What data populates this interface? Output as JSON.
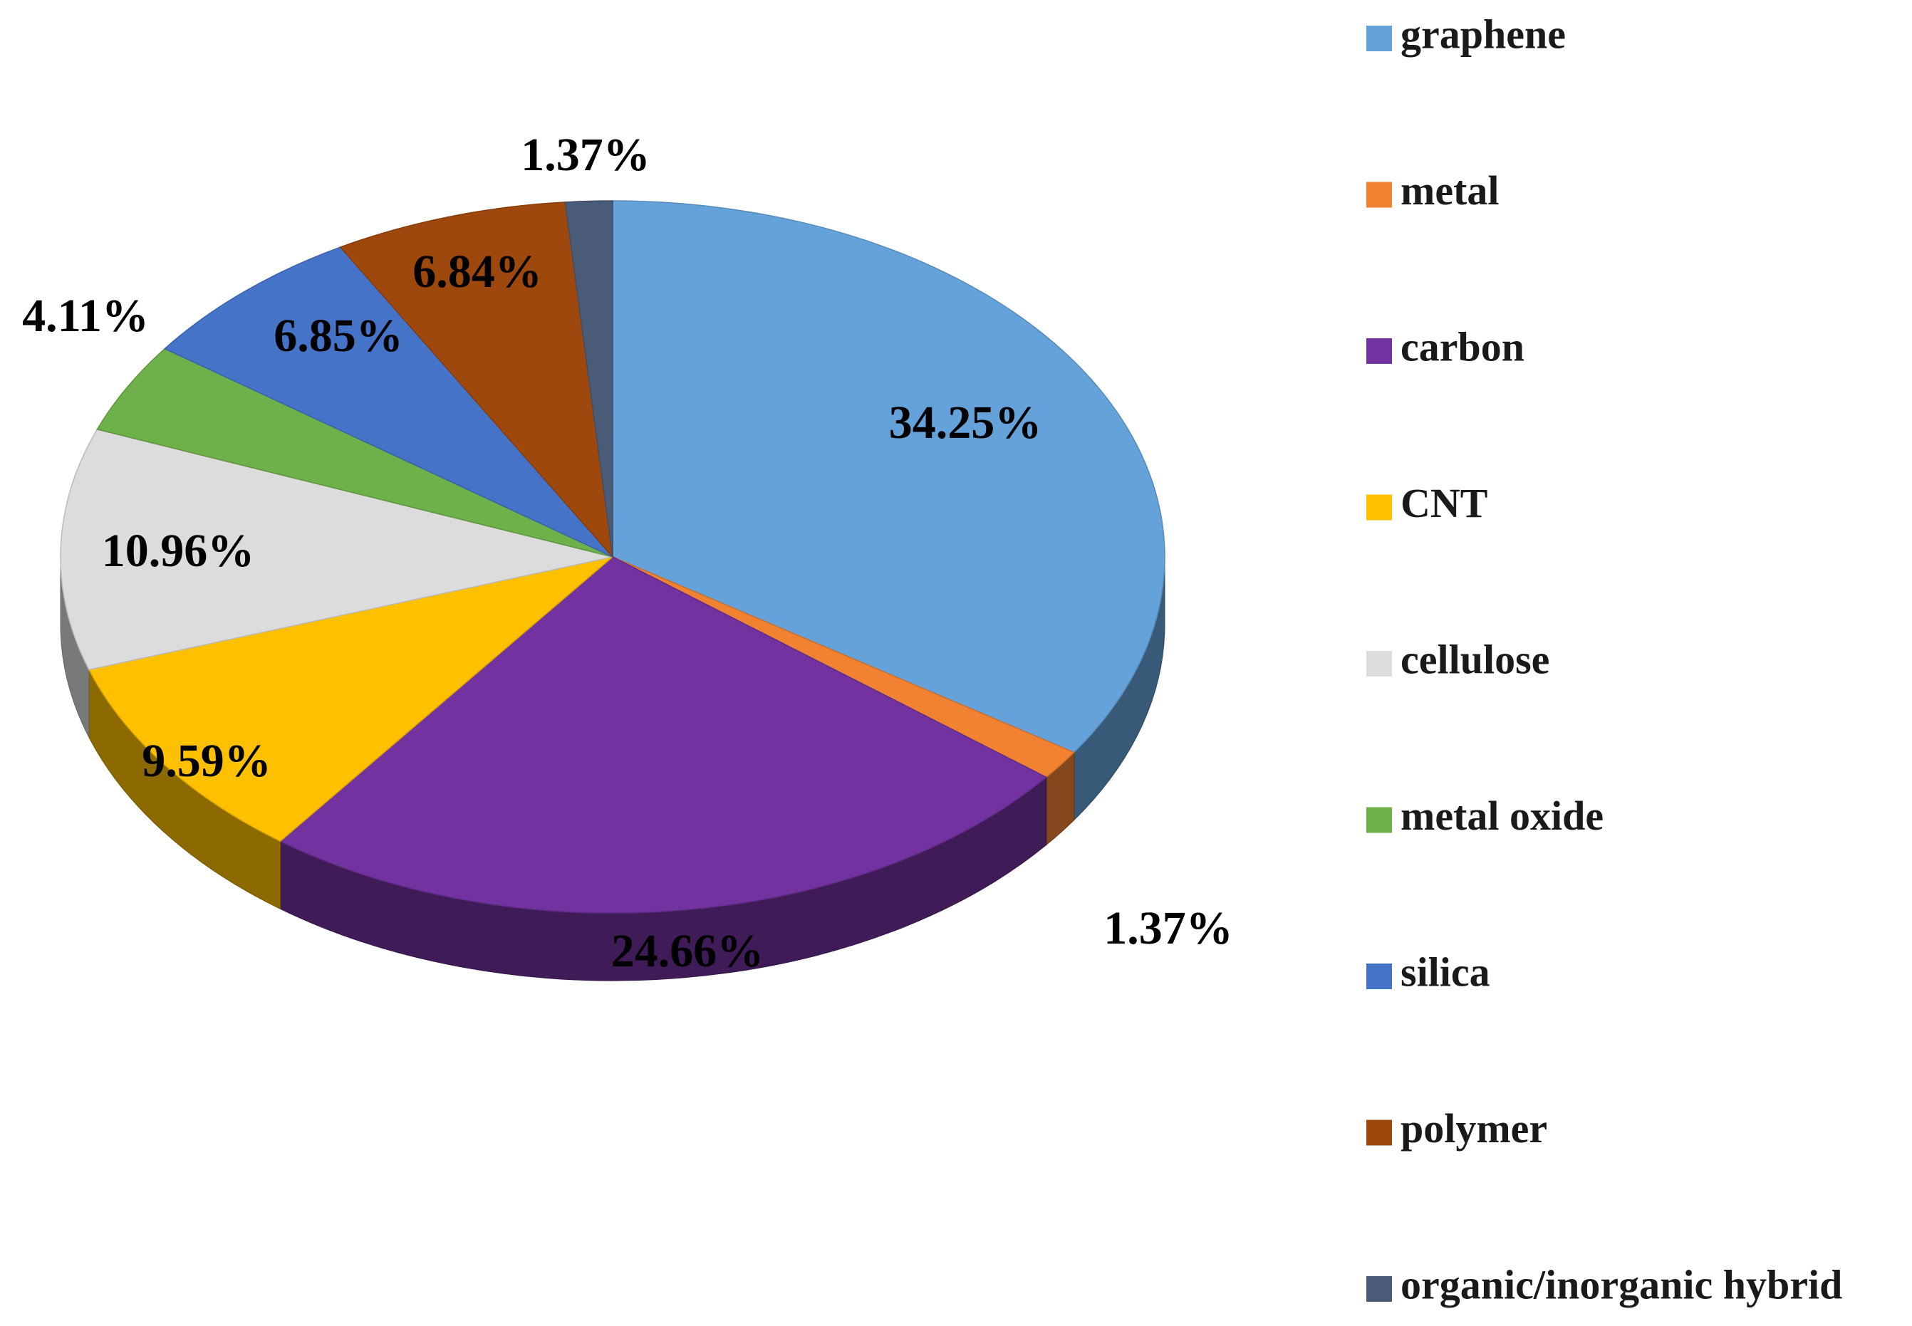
{
  "chart_data": {
    "type": "pie",
    "style": "3d",
    "legend_position": "right",
    "start_angle_deg": 0,
    "direction": "clockwise",
    "slices": [
      {
        "name": "graphene",
        "value": 34.25,
        "label": "34.25%",
        "color": "#65A2DA"
      },
      {
        "name": "metal",
        "value": 1.37,
        "label": "1.37%",
        "color": "#F08232"
      },
      {
        "name": "carbon",
        "value": 24.66,
        "label": "24.66%",
        "color": "#7232A0"
      },
      {
        "name": "CNT",
        "value": 9.59,
        "label": "9.59%",
        "color": "#FFC000"
      },
      {
        "name": "cellulose",
        "value": 10.96,
        "label": "10.96%",
        "color": "#DCDCDC"
      },
      {
        "name": "metal oxide",
        "value": 4.11,
        "label": "4.11%",
        "color": "#6EB04A"
      },
      {
        "name": "silica",
        "value": 6.85,
        "label": "6.85%",
        "color": "#4573C8"
      },
      {
        "name": "polymer",
        "value": 6.84,
        "label": "6.84%",
        "color": "#9E480E"
      },
      {
        "name": "organic/inorganic hybrid",
        "value": 1.37,
        "label": "1.37%",
        "color": "#4A5B78"
      }
    ]
  }
}
